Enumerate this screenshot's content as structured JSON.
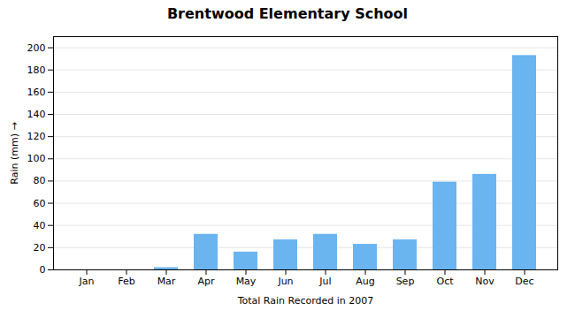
{
  "chart_data": {
    "type": "bar",
    "title": "Brentwood Elementary School",
    "xlabel": "Total Rain Recorded in 2007",
    "ylabel": "Rain (mm)",
    "categories": [
      "Jan",
      "Feb",
      "Mar",
      "Apr",
      "May",
      "Jun",
      "Jul",
      "Aug",
      "Sep",
      "Oct",
      "Nov",
      "Dec"
    ],
    "values": [
      0,
      0,
      2,
      32,
      16,
      27,
      32,
      23,
      27,
      79,
      86,
      193
    ],
    "color": "#6ab4f0",
    "ylim": [
      0,
      210
    ],
    "yticks": [
      0,
      20,
      40,
      60,
      80,
      100,
      120,
      140,
      160,
      180,
      200
    ],
    "grid": true
  }
}
